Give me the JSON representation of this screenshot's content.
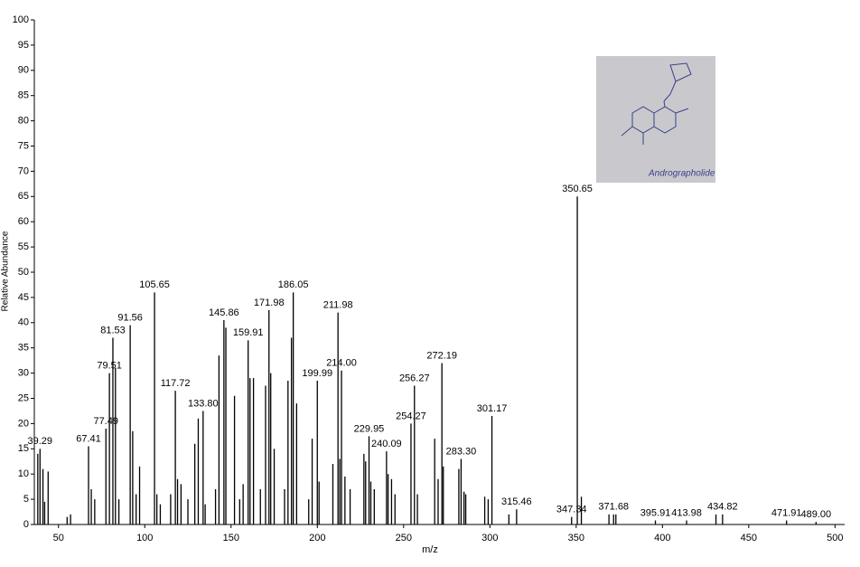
{
  "chart_data": {
    "type": "spectrum",
    "x_label": "m/z",
    "y_label": "Relative Abundance",
    "xlim": [
      36,
      504
    ],
    "xticks": [
      50,
      100,
      150,
      200,
      250,
      300,
      350,
      400,
      450,
      500
    ],
    "ylim": [
      0,
      100
    ],
    "yticks": [
      0,
      5,
      10,
      15,
      20,
      25,
      30,
      35,
      40,
      45,
      50,
      55,
      60,
      65,
      70,
      75,
      80,
      85,
      90,
      95,
      100
    ],
    "color": "#000000",
    "x": [
      38,
      39.29,
      41,
      42,
      44,
      55,
      57,
      67.41,
      69,
      71,
      77.49,
      79.51,
      81.53,
      83,
      85,
      91.56,
      93,
      95,
      97,
      105.65,
      107,
      109,
      115,
      117.72,
      119,
      121,
      125,
      129,
      131,
      133.8,
      135,
      141,
      143,
      145.86,
      147,
      152,
      155,
      157,
      159.91,
      161,
      163,
      167,
      170,
      171.98,
      173,
      175,
      181,
      183,
      185,
      186.05,
      188,
      195,
      197,
      199.99,
      201,
      209,
      211.98,
      213,
      214,
      216,
      219,
      227,
      228,
      229.95,
      231,
      233,
      240.09,
      241,
      243,
      245,
      254.27,
      256.27,
      258,
      268,
      270,
      272.19,
      273,
      282,
      283.3,
      285,
      286,
      297,
      299,
      301.17,
      311,
      315.46,
      347.34,
      350.65,
      353,
      369,
      371.68,
      373,
      395.91,
      413.98,
      431,
      434.82,
      471.91,
      489
    ],
    "values": [
      14,
      15,
      11,
      4.5,
      10.5,
      1.5,
      2,
      15.5,
      7,
      5,
      19,
      30,
      37,
      31,
      5,
      39.5,
      18.5,
      6,
      11.5,
      46,
      6,
      4,
      6,
      26.5,
      9,
      8,
      5,
      16,
      21,
      22.5,
      4,
      7,
      33.5,
      40.5,
      39,
      25.5,
      5,
      8,
      36.5,
      29,
      29,
      7,
      27.5,
      42.5,
      30,
      15,
      7,
      28.5,
      37,
      46,
      24,
      5,
      17,
      28.5,
      8.5,
      12,
      42,
      13,
      30.5,
      9.5,
      7,
      14,
      12.5,
      17.5,
      8.5,
      7,
      14.5,
      10,
      9,
      6,
      20,
      27.5,
      6,
      17,
      9,
      32,
      11.5,
      11,
      13,
      6.5,
      6,
      5.5,
      5,
      21.5,
      2,
      3,
      1.5,
      65,
      5.5,
      2,
      2,
      2,
      0.8,
      0.8,
      2,
      2,
      0.8,
      0.5
    ],
    "x_labels": [
      null,
      "39.29",
      null,
      null,
      null,
      null,
      null,
      "67.41",
      null,
      null,
      "77.49",
      "79.51",
      "81.53",
      null,
      null,
      "91.56",
      null,
      null,
      null,
      "105.65",
      null,
      null,
      null,
      "117.72",
      null,
      null,
      null,
      null,
      null,
      "133.80",
      null,
      null,
      null,
      "145.86",
      null,
      null,
      null,
      null,
      "159.91",
      null,
      null,
      null,
      null,
      "171.98",
      null,
      null,
      null,
      null,
      null,
      "186.05",
      null,
      null,
      null,
      "199.99",
      null,
      null,
      "211.98",
      null,
      "214.00",
      null,
      null,
      null,
      null,
      "229.95",
      null,
      null,
      "240.09",
      null,
      null,
      null,
      "254.27",
      "256.27",
      null,
      null,
      null,
      "272.19",
      null,
      null,
      "283.30",
      null,
      null,
      null,
      null,
      "301.17",
      null,
      "315.46",
      "347.34",
      "350.65",
      null,
      null,
      "371.68",
      null,
      "395.91",
      "413.98",
      null,
      "434.82",
      "471.91",
      "489.00"
    ],
    "inset_caption": "Andrographolide"
  }
}
